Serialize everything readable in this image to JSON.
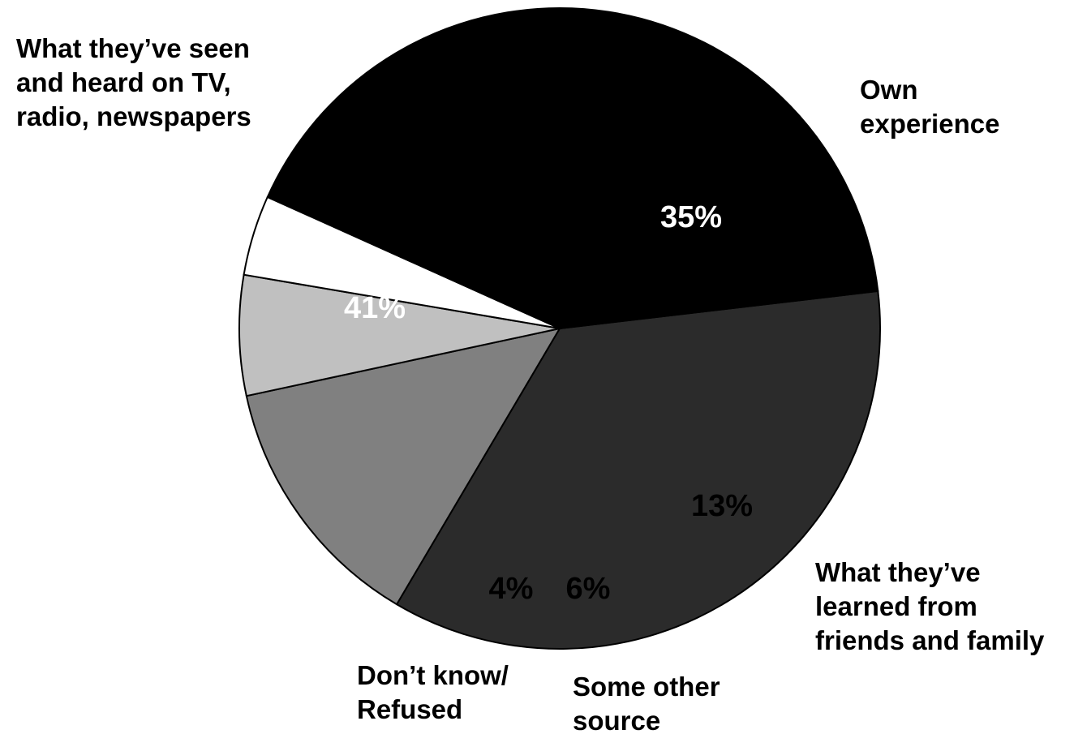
{
  "chart_data": {
    "type": "pie",
    "slices": [
      {
        "label": [
          "Own",
          "experience"
        ],
        "value": 35,
        "value_label": "35%",
        "color": "#2b2b2b",
        "text_color": "#ffffff"
      },
      {
        "label": [
          "What they’ve",
          "learned from",
          "friends and family"
        ],
        "value": 13,
        "value_label": "13%",
        "color": "#808080",
        "text_color": "#000000"
      },
      {
        "label": [
          "Some other",
          "source"
        ],
        "value": 6,
        "value_label": "6%",
        "color": "#c0c0c0",
        "text_color": "#000000"
      },
      {
        "label": [
          "Don’t know/",
          "Refused"
        ],
        "value": 4,
        "value_label": "4%",
        "color": "#ffffff",
        "text_color": "#000000"
      },
      {
        "label": [
          "What they’ve seen",
          "and heard on TV,",
          "radio, newspapers"
        ],
        "value": 41,
        "value_label": "41%",
        "color": "#000000",
        "text_color": "#ffffff"
      }
    ],
    "legend": "none"
  }
}
